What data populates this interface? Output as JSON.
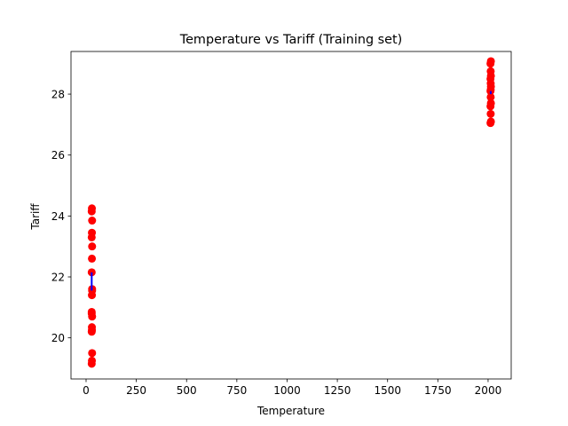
{
  "chart_data": {
    "type": "scatter",
    "title": "Temperature vs Tariff (Training set)",
    "xlabel": "Temperature",
    "ylabel": "Tariff",
    "xlim": [
      -75,
      2115
    ],
    "ylim": [
      18.65,
      29.4
    ],
    "xticks": [
      0,
      250,
      500,
      750,
      1000,
      1250,
      1500,
      1750,
      2000
    ],
    "xtick_labels": [
      "0",
      "250",
      "500",
      "750",
      "1000",
      "1250",
      "1500",
      "1750",
      "2000"
    ],
    "yticks": [
      20,
      22,
      24,
      26,
      28
    ],
    "ytick_labels": [
      "20",
      "22",
      "24",
      "26",
      "28"
    ],
    "grid": false,
    "legend": "none",
    "series": [
      {
        "kind": "scatter",
        "color": "#ff0000",
        "x": [
          28,
          29,
          30,
          28,
          29,
          30,
          28,
          29,
          30,
          28,
          29,
          30,
          28,
          29,
          30,
          28,
          29,
          30,
          28,
          29,
          2012,
          2014,
          2013,
          2012,
          2014,
          2013,
          2012,
          2014,
          2013,
          2012,
          2014,
          2013,
          2012,
          2014,
          2013
        ],
        "y": [
          19.15,
          19.25,
          19.5,
          20.2,
          20.35,
          20.7,
          20.85,
          21.4,
          21.6,
          22.15,
          22.6,
          23.0,
          23.3,
          23.45,
          23.85,
          24.15,
          24.25,
          21.55,
          20.8,
          20.25,
          27.05,
          27.1,
          27.35,
          27.6,
          27.7,
          27.9,
          28.1,
          28.25,
          28.35,
          28.5,
          28.6,
          28.75,
          29.0,
          29.08,
          28.15
        ]
      },
      {
        "kind": "line",
        "color": "#0000ff",
        "segments": [
          {
            "x": [
              28,
              28
            ],
            "y": [
              21.55,
              22.15
            ]
          },
          {
            "x": [
              2013,
              2013
            ],
            "y": [
              28.0,
              28.1
            ]
          }
        ]
      }
    ]
  }
}
